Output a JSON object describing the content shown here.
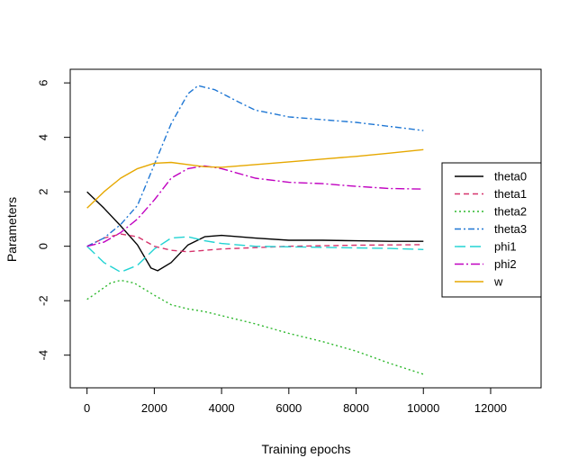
{
  "chart_data": {
    "type": "line",
    "xlabel": "Training epochs",
    "ylabel": "Parameters",
    "xlim": [
      -500,
      13500
    ],
    "ylim": [
      -5.2,
      6.5
    ],
    "xticks": [
      0,
      2000,
      4000,
      6000,
      8000,
      10000,
      12000
    ],
    "yticks": [
      -4,
      -2,
      0,
      2,
      4,
      6
    ],
    "grid": false,
    "legend_position": "right",
    "series": [
      {
        "name": "theta0",
        "color": "#000000",
        "dash": "solid",
        "points": [
          [
            0,
            2.0
          ],
          [
            500,
            1.4
          ],
          [
            1000,
            0.75
          ],
          [
            1500,
            0.05
          ],
          [
            1900,
            -0.8
          ],
          [
            2100,
            -0.9
          ],
          [
            2500,
            -0.6
          ],
          [
            3000,
            0.05
          ],
          [
            3500,
            0.35
          ],
          [
            4000,
            0.4
          ],
          [
            5000,
            0.3
          ],
          [
            6000,
            0.22
          ],
          [
            7000,
            0.22
          ],
          [
            8000,
            0.2
          ],
          [
            9000,
            0.18
          ],
          [
            10000,
            0.18
          ]
        ]
      },
      {
        "name": "theta1",
        "color": "#d6336c",
        "dash": "dash",
        "points": [
          [
            0,
            0.0
          ],
          [
            500,
            0.3
          ],
          [
            1000,
            0.45
          ],
          [
            1500,
            0.35
          ],
          [
            2000,
            0.0
          ],
          [
            2500,
            -0.15
          ],
          [
            3000,
            -0.2
          ],
          [
            3500,
            -0.15
          ],
          [
            4000,
            -0.1
          ],
          [
            5000,
            -0.05
          ],
          [
            6000,
            0.0
          ],
          [
            7000,
            0.02
          ],
          [
            8000,
            0.04
          ],
          [
            9000,
            0.05
          ],
          [
            10000,
            0.06
          ]
        ]
      },
      {
        "name": "theta2",
        "color": "#2db82d",
        "dash": "dot",
        "points": [
          [
            0,
            -1.95
          ],
          [
            300,
            -1.7
          ],
          [
            700,
            -1.35
          ],
          [
            1000,
            -1.25
          ],
          [
            1400,
            -1.35
          ],
          [
            2000,
            -1.8
          ],
          [
            2500,
            -2.15
          ],
          [
            3000,
            -2.3
          ],
          [
            3500,
            -2.4
          ],
          [
            4000,
            -2.55
          ],
          [
            5000,
            -2.85
          ],
          [
            6000,
            -3.2
          ],
          [
            7000,
            -3.5
          ],
          [
            8000,
            -3.85
          ],
          [
            9000,
            -4.3
          ],
          [
            10000,
            -4.7
          ]
        ]
      },
      {
        "name": "theta3",
        "color": "#1f77d4",
        "dash": "dashdot",
        "points": [
          [
            0,
            0.0
          ],
          [
            500,
            0.3
          ],
          [
            1000,
            0.8
          ],
          [
            1500,
            1.5
          ],
          [
            2000,
            3.0
          ],
          [
            2500,
            4.5
          ],
          [
            3000,
            5.6
          ],
          [
            3300,
            5.9
          ],
          [
            3800,
            5.75
          ],
          [
            4500,
            5.3
          ],
          [
            5000,
            5.0
          ],
          [
            6000,
            4.75
          ],
          [
            7000,
            4.65
          ],
          [
            8000,
            4.55
          ],
          [
            9000,
            4.4
          ],
          [
            10000,
            4.25
          ]
        ]
      },
      {
        "name": "phi1",
        "color": "#22d3d3",
        "dash": "longdash",
        "points": [
          [
            0,
            0.0
          ],
          [
            500,
            -0.6
          ],
          [
            1000,
            -0.95
          ],
          [
            1500,
            -0.7
          ],
          [
            2000,
            -0.1
          ],
          [
            2500,
            0.3
          ],
          [
            3000,
            0.35
          ],
          [
            3500,
            0.2
          ],
          [
            4000,
            0.1
          ],
          [
            5000,
            0.0
          ],
          [
            6000,
            -0.02
          ],
          [
            7000,
            -0.04
          ],
          [
            8000,
            -0.06
          ],
          [
            9000,
            -0.08
          ],
          [
            10000,
            -0.12
          ]
        ]
      },
      {
        "name": "phi2",
        "color": "#c000c0",
        "dash": "longdashdot",
        "points": [
          [
            0,
            0.0
          ],
          [
            500,
            0.15
          ],
          [
            1000,
            0.5
          ],
          [
            1500,
            1.0
          ],
          [
            2000,
            1.7
          ],
          [
            2500,
            2.5
          ],
          [
            3000,
            2.85
          ],
          [
            3500,
            2.95
          ],
          [
            4000,
            2.85
          ],
          [
            5000,
            2.5
          ],
          [
            6000,
            2.35
          ],
          [
            7000,
            2.3
          ],
          [
            8000,
            2.2
          ],
          [
            9000,
            2.12
          ],
          [
            10000,
            2.1
          ]
        ]
      },
      {
        "name": "w",
        "color": "#e6a800",
        "dash": "solid",
        "points": [
          [
            0,
            1.4
          ],
          [
            500,
            2.0
          ],
          [
            1000,
            2.5
          ],
          [
            1500,
            2.85
          ],
          [
            2000,
            3.05
          ],
          [
            2500,
            3.08
          ],
          [
            3000,
            3.0
          ],
          [
            3500,
            2.92
          ],
          [
            4000,
            2.9
          ],
          [
            5000,
            3.0
          ],
          [
            6000,
            3.1
          ],
          [
            7000,
            3.2
          ],
          [
            8000,
            3.3
          ],
          [
            9000,
            3.42
          ],
          [
            10000,
            3.55
          ]
        ]
      }
    ]
  }
}
